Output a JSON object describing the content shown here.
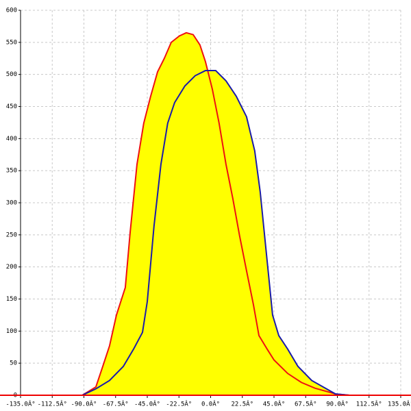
{
  "chart_data": {
    "type": "line",
    "xlim": [
      -135,
      135
    ],
    "ylim": [
      0,
      600
    ],
    "xticks": [
      {
        "value": -135,
        "label": "-135.0Â°"
      },
      {
        "value": -112.5,
        "label": "-112.5Â°"
      },
      {
        "value": -90,
        "label": "-90.0Â°"
      },
      {
        "value": -67.5,
        "label": "-67.5Â°"
      },
      {
        "value": -45,
        "label": "-45.0Â°"
      },
      {
        "value": -22.5,
        "label": "-22.5Â°"
      },
      {
        "value": 0,
        "label": "0.0Â°"
      },
      {
        "value": 22.5,
        "label": "22.5Â°"
      },
      {
        "value": 45,
        "label": "45.0Â°"
      },
      {
        "value": 67.5,
        "label": "67.5Â°"
      },
      {
        "value": 90,
        "label": "90.0Â°"
      },
      {
        "value": 112.5,
        "label": "112.5Â°"
      },
      {
        "value": 135,
        "label": "135.0Â°"
      }
    ],
    "yticks": [
      0,
      50,
      100,
      150,
      200,
      250,
      300,
      350,
      400,
      450,
      500,
      550,
      600
    ],
    "grid": true,
    "fill_color": "#ffff00",
    "axis_color": "#ee0000",
    "series": [
      {
        "color": "#ee1111",
        "x": [
          -91.2,
          -81.5,
          -76.6,
          -71.8,
          -66.9,
          -60.6,
          -57.2,
          -52.3,
          -47.5,
          -42.6,
          -37.7,
          -32.9,
          -28.0,
          -22.2,
          -17.3,
          -12.4,
          -7.6,
          -3.7,
          1.2,
          6.0,
          10.9,
          15.8,
          20.6,
          25.5,
          30.4,
          34.3,
          40.1,
          45.0,
          54.7,
          64.4,
          74.1,
          88.7,
          98.5
        ],
        "values": [
          0,
          13,
          45,
          77,
          125,
          168,
          253,
          360,
          424,
          466,
          504,
          525,
          550,
          560,
          565,
          562,
          546,
          520,
          477,
          424,
          360,
          306,
          248,
          194,
          141,
          93,
          72,
          55,
          34,
          20,
          11,
          2,
          0
        ]
      },
      {
        "color": "#1a1aaa",
        "x": [
          -91.2,
          -81.5,
          -71.8,
          -62.0,
          -54.7,
          -48.4,
          -45.0,
          -40.2,
          -35.3,
          -30.5,
          -25.6,
          -18.3,
          -11.0,
          -3.7,
          3.6,
          10.9,
          18.2,
          25.5,
          31.3,
          35.2,
          40.1,
          44.0,
          48.4,
          54.7,
          62.0,
          71.8,
          81.5,
          88.7,
          98.5
        ],
        "values": [
          0,
          10,
          23,
          45,
          72,
          98,
          146,
          264,
          360,
          424,
          456,
          482,
          498,
          506,
          506,
          490,
          466,
          434,
          381,
          317,
          210,
          125,
          93,
          72,
          45,
          23,
          11,
          2,
          0
        ]
      }
    ]
  }
}
